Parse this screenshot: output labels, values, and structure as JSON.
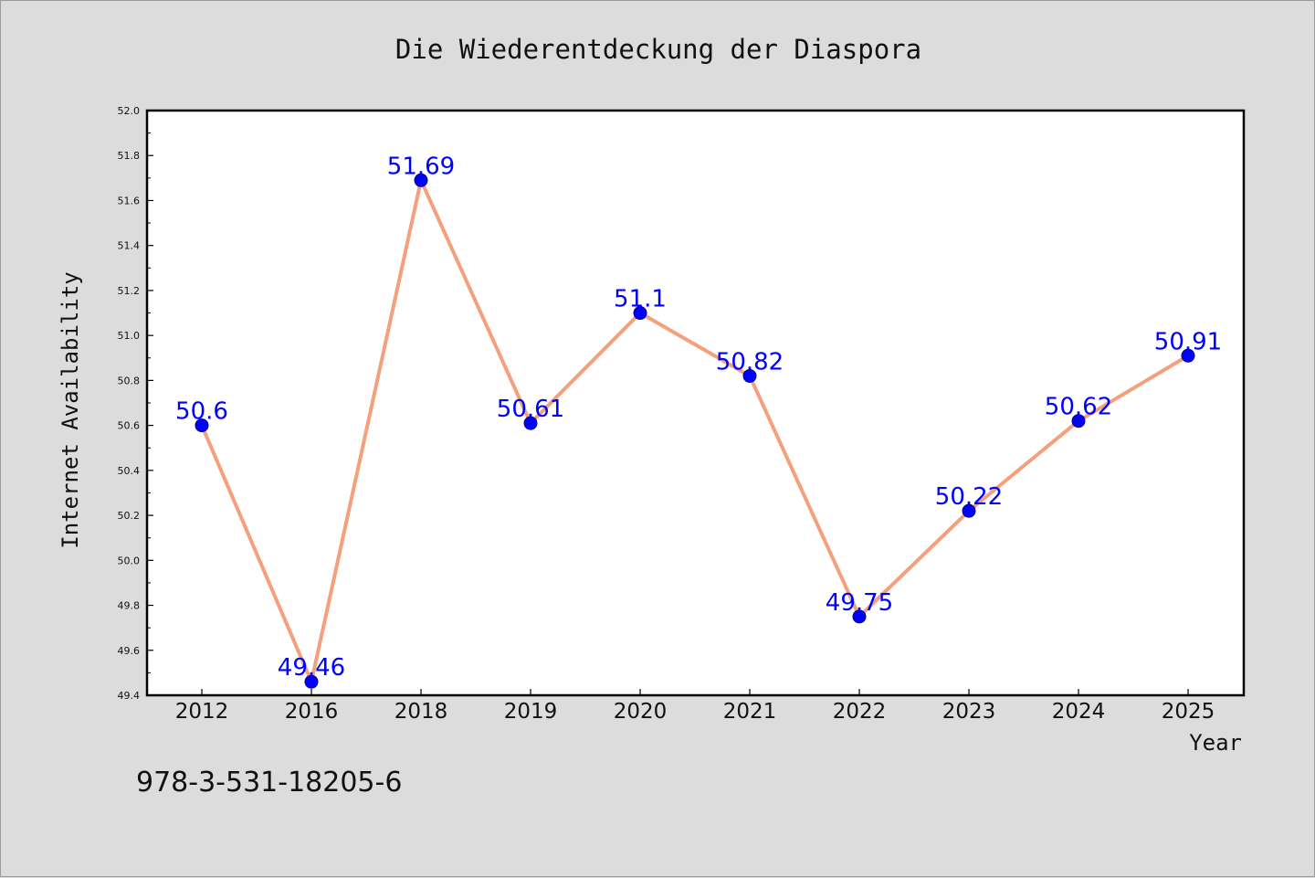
{
  "chart_data": {
    "type": "line",
    "title": "Die Wiederentdeckung der Diaspora",
    "xlabel": "Year",
    "ylabel": "Internet Availability",
    "categories": [
      "2012",
      "2016",
      "2018",
      "2019",
      "2020",
      "2021",
      "2022",
      "2023",
      "2024",
      "2025"
    ],
    "series": [
      {
        "values": [
          50.6,
          49.46,
          51.69,
          50.61,
          51.1,
          50.82,
          49.75,
          50.22,
          50.62,
          50.91
        ]
      }
    ],
    "data_labels": [
      "50.6",
      "49.46",
      "51.69",
      "50.61",
      "51.1",
      "50.82",
      "49.75",
      "50.22",
      "50.62",
      "50.91"
    ],
    "ylim": [
      49.4,
      52.0
    ],
    "yticks": [
      "49.4",
      "49.6",
      "49.8",
      "50.0",
      "50.2",
      "50.4",
      "50.6",
      "50.8",
      "51.0",
      "51.2",
      "51.4",
      "51.6",
      "51.8",
      "52.0"
    ],
    "grid": false,
    "line_color": "#f4a07c",
    "marker_color": "#0000ff",
    "label_color": "#0000ff"
  },
  "footnote": "978-3-531-18205-6",
  "colors": {
    "background": "#dcdcdc",
    "plot_background": "#ffffff"
  }
}
